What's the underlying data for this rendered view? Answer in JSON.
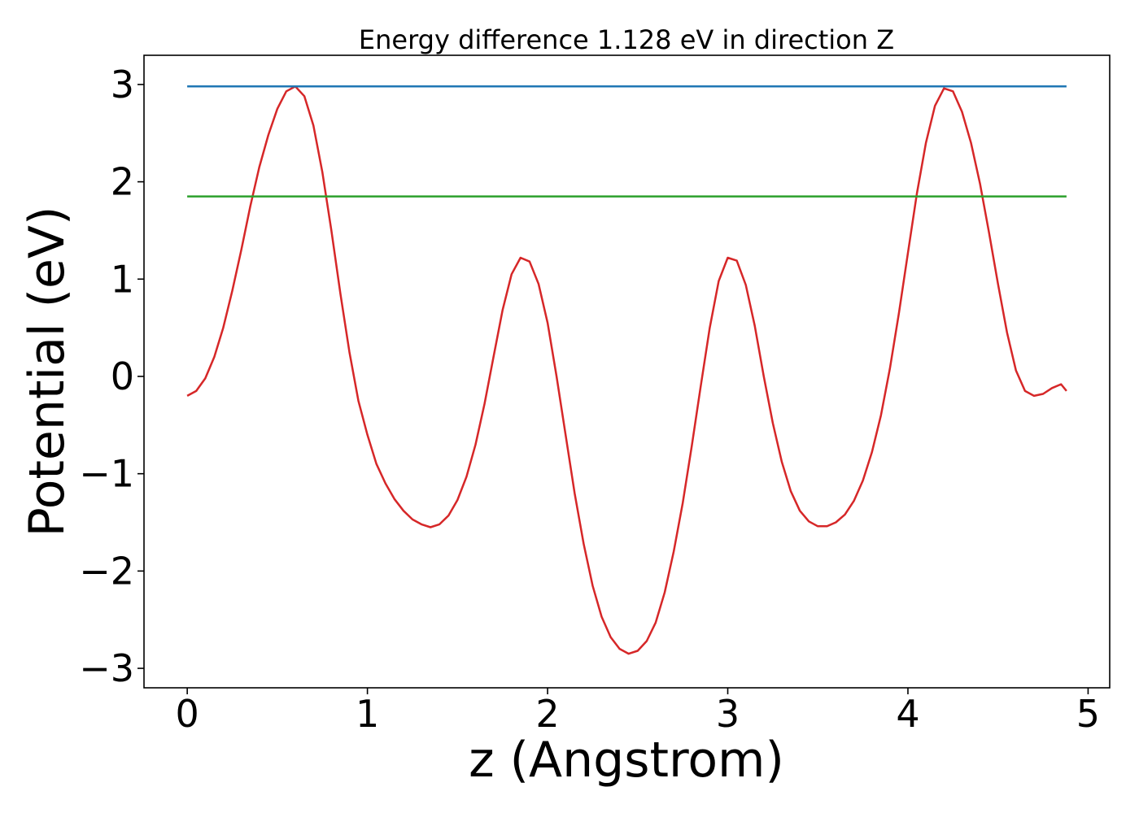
{
  "chart_data": {
    "type": "line",
    "title": "Energy difference 1.128 eV in direction Z",
    "xlabel": "z (Angstrom)",
    "ylabel": "Potential (eV)",
    "xlim": [
      -0.24,
      5.12
    ],
    "ylim": [
      -3.2,
      3.3
    ],
    "xticks": [
      0,
      1,
      2,
      3,
      4,
      5
    ],
    "xtick_labels": [
      "0",
      "1",
      "2",
      "3",
      "4",
      "5"
    ],
    "yticks": [
      3,
      2,
      1,
      0,
      -1,
      -2,
      -3
    ],
    "ytick_labels": [
      "3",
      "2",
      "1",
      "0",
      "−1",
      "−2",
      "−3"
    ],
    "grid": false,
    "series": [
      {
        "color": "#d62728",
        "x": [
          0.0,
          0.05,
          0.1,
          0.15,
          0.2,
          0.25,
          0.3,
          0.35,
          0.4,
          0.45,
          0.5,
          0.55,
          0.6,
          0.65,
          0.7,
          0.75,
          0.8,
          0.85,
          0.9,
          0.95,
          1.0,
          1.05,
          1.1,
          1.15,
          1.2,
          1.25,
          1.3,
          1.35,
          1.4,
          1.45,
          1.5,
          1.55,
          1.6,
          1.65,
          1.7,
          1.75,
          1.8,
          1.85,
          1.9,
          1.95,
          2.0,
          2.05,
          2.1,
          2.15,
          2.2,
          2.25,
          2.3,
          2.35,
          2.4,
          2.45,
          2.5,
          2.55,
          2.6,
          2.65,
          2.7,
          2.75,
          2.8,
          2.85,
          2.9,
          2.95,
          3.0,
          3.05,
          3.1,
          3.15,
          3.2,
          3.25,
          3.3,
          3.35,
          3.4,
          3.45,
          3.5,
          3.55,
          3.6,
          3.65,
          3.7,
          3.75,
          3.8,
          3.85,
          3.9,
          3.95,
          4.0,
          4.05,
          4.1,
          4.15,
          4.2,
          4.25,
          4.3,
          4.35,
          4.4,
          4.45,
          4.5,
          4.55,
          4.6,
          4.65,
          4.7,
          4.75,
          4.8,
          4.85,
          4.88
        ],
        "y": [
          -0.2,
          -0.15,
          -0.02,
          0.2,
          0.5,
          0.88,
          1.3,
          1.75,
          2.15,
          2.48,
          2.75,
          2.93,
          2.98,
          2.88,
          2.58,
          2.1,
          1.5,
          0.85,
          0.25,
          -0.25,
          -0.6,
          -0.9,
          -1.1,
          -1.26,
          -1.38,
          -1.47,
          -1.52,
          -1.55,
          -1.52,
          -1.43,
          -1.27,
          -1.03,
          -0.7,
          -0.28,
          0.2,
          0.68,
          1.05,
          1.22,
          1.18,
          0.95,
          0.55,
          0.0,
          -0.6,
          -1.2,
          -1.72,
          -2.15,
          -2.47,
          -2.68,
          -2.8,
          -2.85,
          -2.82,
          -2.72,
          -2.53,
          -2.22,
          -1.8,
          -1.3,
          -0.72,
          -0.1,
          0.5,
          0.98,
          1.22,
          1.19,
          0.94,
          0.52,
          0.0,
          -0.48,
          -0.88,
          -1.18,
          -1.38,
          -1.49,
          -1.54,
          -1.54,
          -1.5,
          -1.42,
          -1.28,
          -1.07,
          -0.78,
          -0.4,
          0.08,
          0.65,
          1.27,
          1.88,
          2.4,
          2.78,
          2.96,
          2.93,
          2.72,
          2.4,
          1.98,
          1.48,
          0.95,
          0.45,
          0.06,
          -0.15,
          -0.2,
          -0.18,
          -0.12,
          -0.08,
          -0.15
        ]
      },
      {
        "color": "#1f77b4",
        "x": [
          0.0,
          4.88
        ],
        "y": [
          2.98,
          2.98
        ]
      },
      {
        "color": "#2ca02c",
        "x": [
          0.0,
          4.88
        ],
        "y": [
          1.85,
          1.85
        ]
      }
    ]
  }
}
